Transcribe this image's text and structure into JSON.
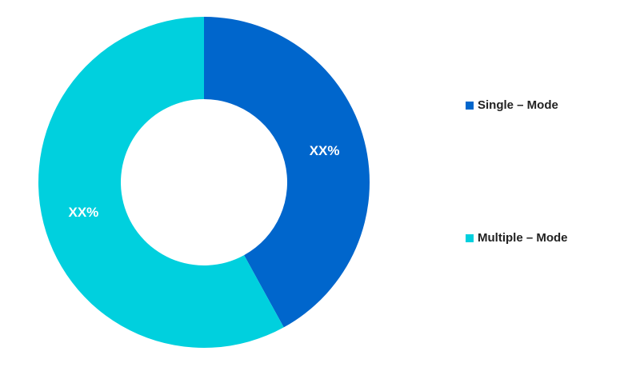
{
  "chart_data": {
    "type": "donut",
    "categories": [
      "Single – Mode",
      "Multiple – Mode"
    ],
    "values": [
      42,
      58
    ],
    "value_labels": [
      "XX%",
      "XX%"
    ],
    "colors": [
      "#0066cc",
      "#00d0de"
    ]
  }
}
